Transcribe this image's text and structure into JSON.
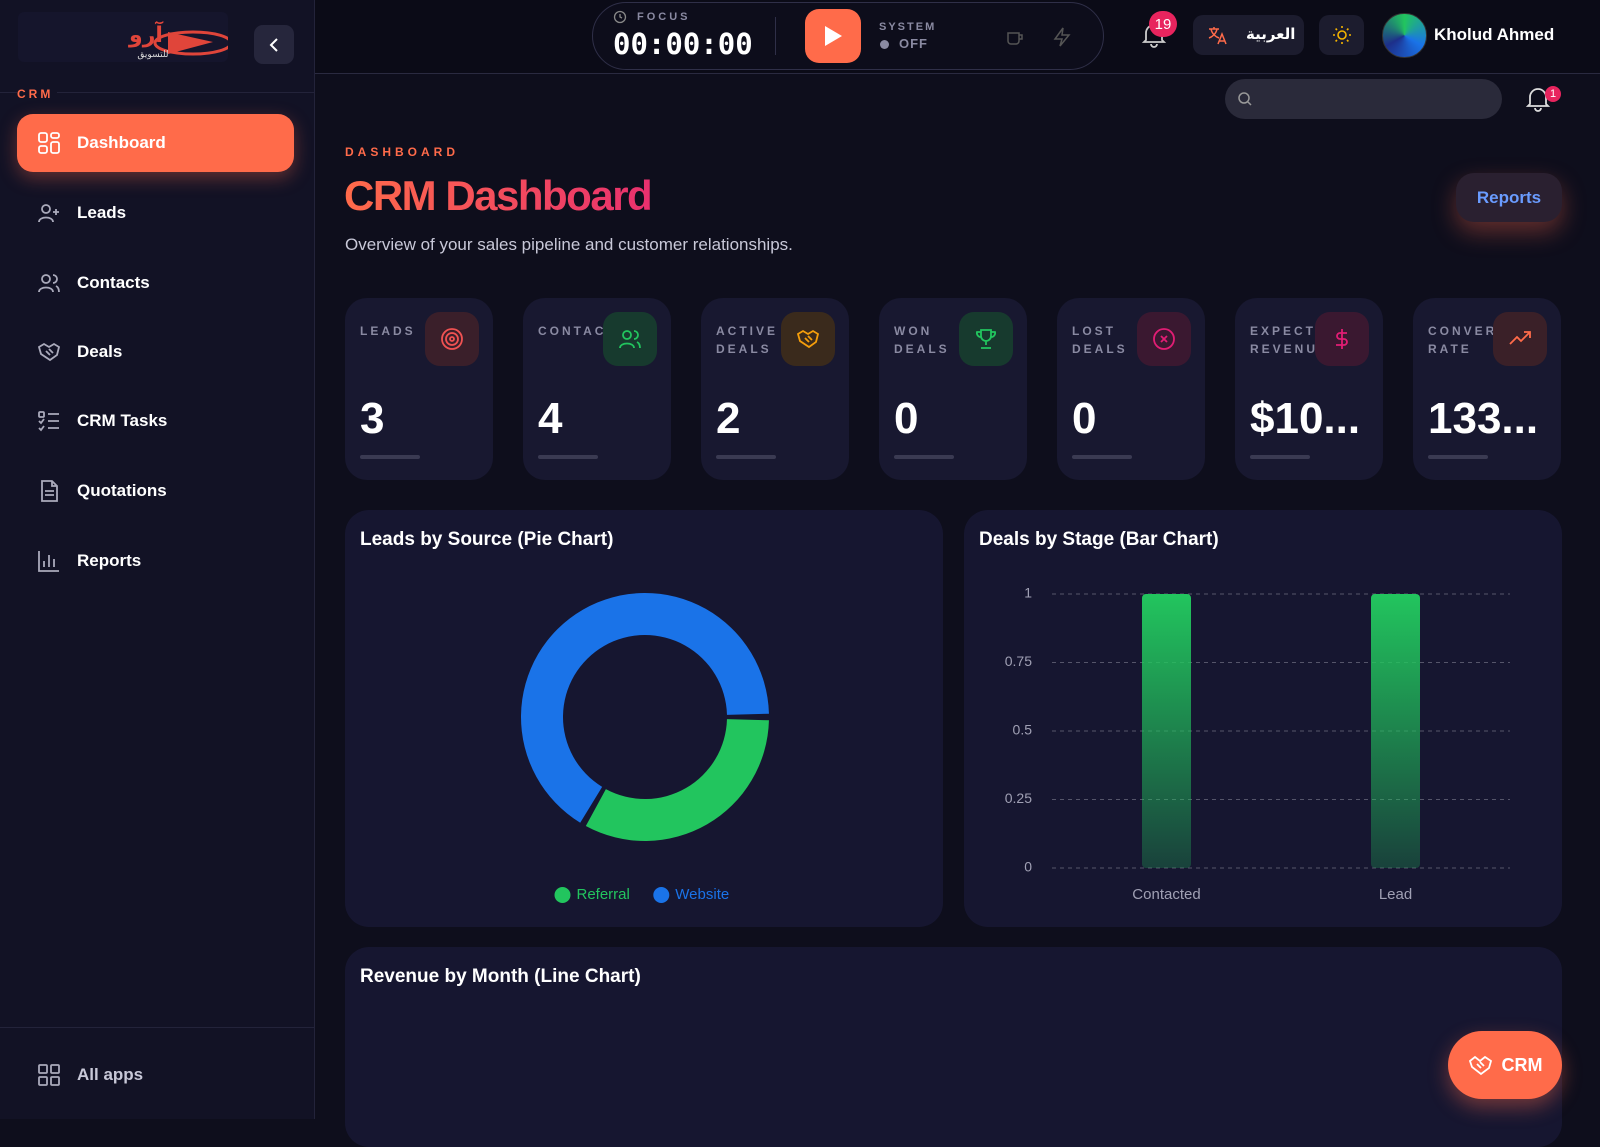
{
  "logo": {
    "mark": "آرو",
    "tagline": "للتسويق"
  },
  "sidebar": {
    "section": "CRM",
    "items": [
      "Dashboard",
      "Leads",
      "Contacts",
      "Deals",
      "CRM Tasks",
      "Quotations",
      "Reports"
    ],
    "footer": "All apps"
  },
  "topbar": {
    "focus_label": "FOCUS",
    "timer": "00:00:00",
    "system_label": "SYSTEM",
    "system_state": "OFF",
    "notifications": 19,
    "language": "العربية",
    "user": "Kholud Ahmed"
  },
  "search": {
    "notifications": 1
  },
  "header": {
    "eyebrow": "DASHBOARD",
    "title": "CRM Dashboard",
    "subtitle": "Overview of your sales pipeline and customer relationships.",
    "button": "Reports"
  },
  "kpis": [
    {
      "label": "LEADS",
      "value": 3
    },
    {
      "label": "CONTAC",
      "value": 4
    },
    {
      "label": "ACTIVE DEALS",
      "value": 2
    },
    {
      "label": "WON DEALS",
      "value": 0
    },
    {
      "label": "LOST DEALS",
      "value": 0
    },
    {
      "label": "EXPECT REVENU",
      "value": "$10..."
    },
    {
      "label": "CONVER RATE",
      "value": "133..."
    }
  ],
  "fab": "CRM",
  "chart_data": [
    {
      "type": "pie",
      "title": "Leads by Source (Pie Chart)",
      "categories": [
        "Referral",
        "Website"
      ],
      "values": [
        1,
        2
      ],
      "colors": [
        "#22c55e",
        "#1a73e8"
      ],
      "donut": true
    },
    {
      "type": "bar",
      "title": "Deals by Stage (Bar Chart)",
      "categories": [
        "Contacted",
        "Lead"
      ],
      "values": [
        1,
        1
      ],
      "color": "#22c55e",
      "ylim": [
        0,
        1
      ],
      "yticks": [
        0,
        0.25,
        0.5,
        0.75,
        1
      ],
      "grid": true
    },
    {
      "type": "line",
      "title": "Revenue by Month (Line Chart)"
    }
  ]
}
